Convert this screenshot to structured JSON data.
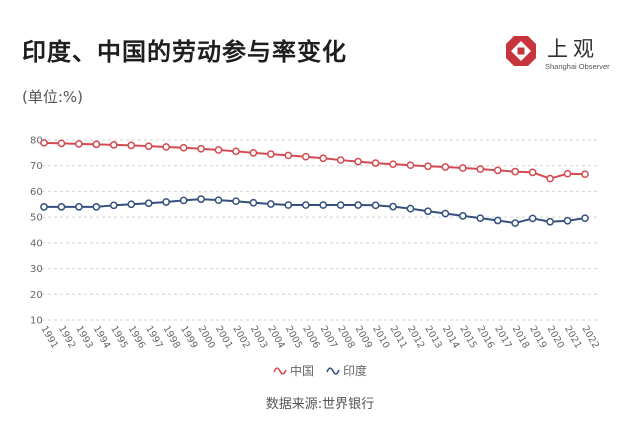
{
  "title": "印度、中国的劳动参与率变化",
  "subtitle": "(单位:%)",
  "logo": {
    "name": "上观",
    "english": "Shanghai Observer",
    "color": "#c8343b"
  },
  "source": "数据来源:世界银行",
  "chart_data": {
    "type": "line",
    "title": "印度、中国的劳动参与率变化",
    "xlabel": "",
    "ylabel": "",
    "x": [
      "1991",
      "1992",
      "1993",
      "1994",
      "1995",
      "1996",
      "1997",
      "1998",
      "1999",
      "2000",
      "2001",
      "2002",
      "2003",
      "2004",
      "2005",
      "2006",
      "2007",
      "2008",
      "2009",
      "2010",
      "2011",
      "2012",
      "2013",
      "2014",
      "2015",
      "2016",
      "2017",
      "2018",
      "2019",
      "2020",
      "2021",
      "2022"
    ],
    "ylim": [
      10,
      80
    ],
    "yticks": [
      10,
      20,
      30,
      40,
      50,
      60,
      70,
      80
    ],
    "grid": true,
    "legend_position": "bottom-center",
    "series": [
      {
        "name": "中国",
        "color": "#d24b51",
        "values": [
          78.9,
          78.7,
          78.5,
          78.3,
          78.1,
          77.9,
          77.6,
          77.3,
          77.0,
          76.6,
          76.1,
          75.6,
          75.0,
          74.5,
          74.0,
          73.5,
          72.9,
          72.2,
          71.6,
          71.0,
          70.6,
          70.2,
          69.8,
          69.5,
          69.1,
          68.7,
          68.2,
          67.7,
          67.4,
          65.0,
          66.9,
          66.7
        ]
      },
      {
        "name": "印度",
        "color": "#34507c",
        "values": [
          54.0,
          54.0,
          54.0,
          54.0,
          54.6,
          55.0,
          55.4,
          55.9,
          56.5,
          57.0,
          56.6,
          56.2,
          55.6,
          55.1,
          54.7,
          54.7,
          54.7,
          54.7,
          54.7,
          54.6,
          54.1,
          53.3,
          52.3,
          51.4,
          50.5,
          49.6,
          48.7,
          47.7,
          49.5,
          48.2,
          48.6,
          49.6
        ]
      }
    ]
  }
}
